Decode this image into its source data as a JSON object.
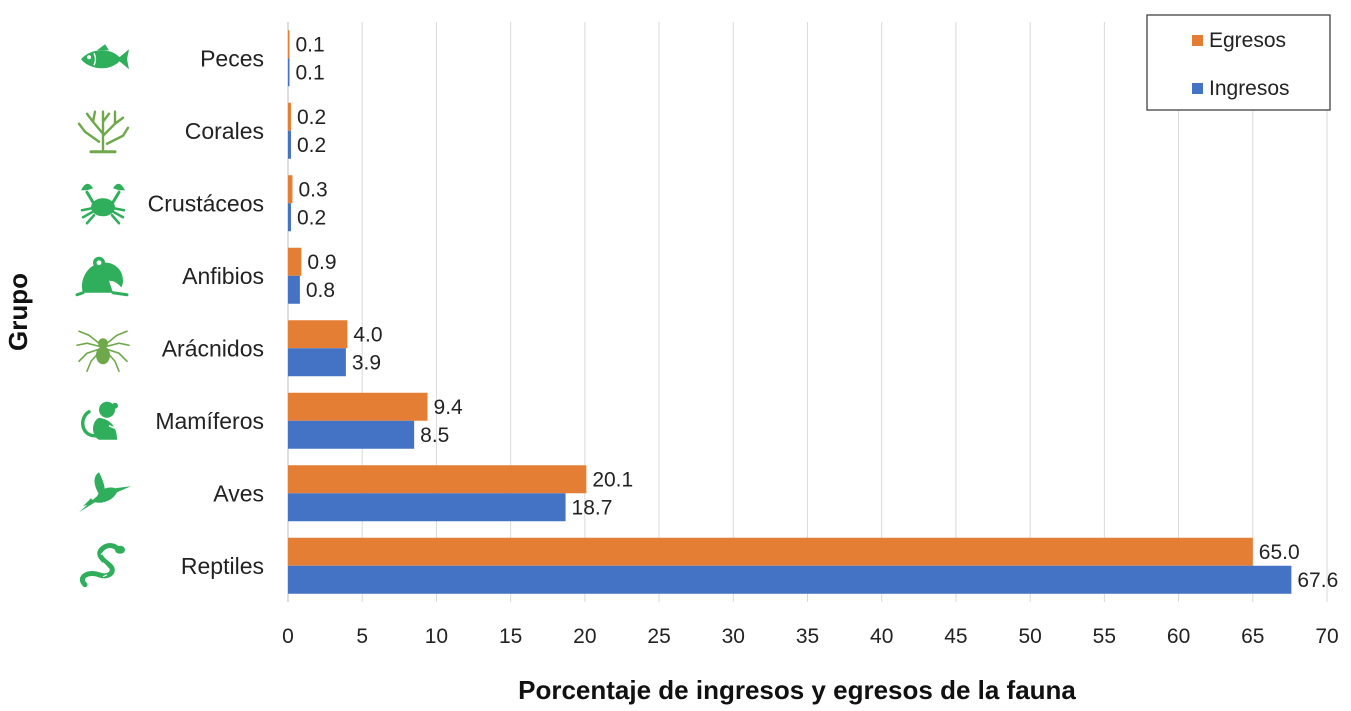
{
  "chart_data": {
    "type": "bar",
    "orientation": "horizontal",
    "categories": [
      "Peces",
      "Corales",
      "Crustáceos",
      "Anfibios",
      "Arácnidos",
      "Mamíferos",
      "Aves",
      "Reptiles"
    ],
    "category_icons": [
      "fish-icon",
      "coral-icon",
      "crab-icon",
      "frog-icon",
      "spider-icon",
      "monkey-icon",
      "hummingbird-icon",
      "snake-icon"
    ],
    "series": [
      {
        "name": "Egresos",
        "color": "#E57E35",
        "values": [
          0.1,
          0.2,
          0.3,
          0.9,
          4.0,
          9.4,
          20.1,
          65.0
        ]
      },
      {
        "name": "Ingresos",
        "color": "#4472C4",
        "values": [
          0.1,
          0.2,
          0.2,
          0.8,
          3.9,
          8.5,
          18.7,
          67.6
        ]
      }
    ],
    "xlabel": "Porcentaje de ingresos y egresos de la fauna",
    "ylabel": "Grupo",
    "xlim": [
      0,
      70
    ],
    "xticks": [
      0,
      5,
      10,
      15,
      20,
      25,
      30,
      35,
      40,
      45,
      50,
      55,
      60,
      65,
      70
    ],
    "grid": "vertical",
    "legend": "top-right",
    "icon_color": "#2FAE5B",
    "icon_color_alt": "#6FA84A"
  }
}
